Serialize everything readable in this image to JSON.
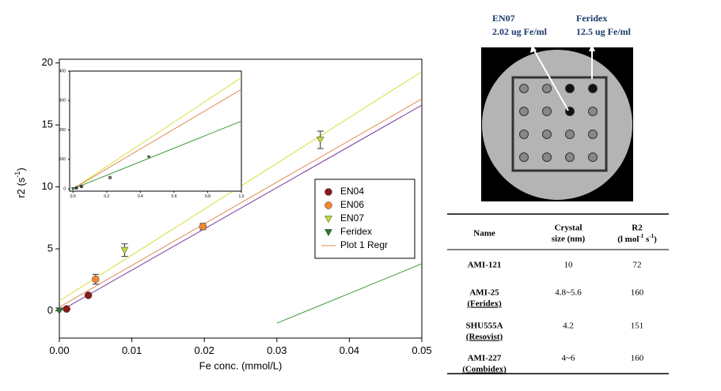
{
  "chart_data": [
    {
      "type": "scatter",
      "xlabel": "Fe conc. (mmol/L)",
      "ylabel": [
        "r2 (s",
        "-1",
        ")"
      ],
      "xlim": [
        0,
        0.05
      ],
      "ylim": [
        -2.2,
        20.3
      ],
      "xticks": [
        {
          "value": 0,
          "label": "0.00"
        },
        {
          "value": 0.01,
          "label": "0.01"
        },
        {
          "value": 0.02,
          "label": "0.02"
        },
        {
          "value": 0.03,
          "label": "0.03"
        },
        {
          "value": 0.04,
          "label": "0.04"
        },
        {
          "value": 0.05,
          "label": "0.05"
        }
      ],
      "yticks": [
        0,
        5,
        10,
        15,
        20
      ],
      "series": [
        {
          "name": "EN04",
          "color": "#8b1a1a",
          "marker": "circle",
          "x": [
            0.001,
            0.004
          ],
          "values": [
            0.15,
            1.25
          ]
        },
        {
          "name": "EN06",
          "color": "#f08a30",
          "marker": "circle",
          "x": [
            0.005,
            0.0198
          ],
          "values": [
            2.55,
            6.8
          ],
          "errors": [
            0.4,
            0.25
          ]
        },
        {
          "name": "EN07",
          "color": "#c8d83a",
          "marker": "triangle-down",
          "x": [
            0.009,
            0.036
          ],
          "values": [
            4.9,
            13.8
          ],
          "errors": [
            0.5,
            0.7
          ]
        },
        {
          "name": "Feridex",
          "color": "#2a7a2a",
          "marker": "triangle-down",
          "x": [
            0
          ],
          "values": [
            0.02
          ]
        },
        {
          "name": "Plot 1 Regr",
          "color": "#e08850",
          "marker": "line",
          "x": [
            0,
            0.05
          ],
          "values": [
            0.3,
            17.1
          ]
        }
      ],
      "fit_lines": [
        {
          "color": "#d8e040",
          "x": [
            0,
            0.05
          ],
          "values": [
            0.8,
            19.3
          ]
        },
        {
          "color": "#7a3a9a",
          "x": [
            0,
            0.05
          ],
          "values": [
            -0.05,
            16.6
          ]
        },
        {
          "color": "#3a9a3a",
          "x": [
            0.03,
            0.05
          ],
          "values": [
            -1.0,
            3.8
          ]
        }
      ]
    },
    {
      "type": "scatter",
      "xlim": [
        -0.02,
        1.0
      ],
      "ylim": [
        -8,
        400
      ],
      "xticks": [
        {
          "value": 0,
          "label": "0.0"
        },
        {
          "value": 0.2,
          "label": "0.2"
        },
        {
          "value": 0.4,
          "label": "0.4"
        },
        {
          "value": 0.6,
          "label": "0.6"
        },
        {
          "value": 0.8,
          "label": "0.8"
        },
        {
          "value": 1.0,
          "label": "1.0"
        }
      ],
      "yticks": [
        0,
        100,
        200,
        300,
        400
      ],
      "series": [
        {
          "color": "#2a7a2a",
          "marker": "triangle-down",
          "x": [
            0,
            0.45
          ],
          "values": [
            0,
            108
          ]
        },
        {
          "color": "#444444",
          "marker": "circle",
          "x": [
            0.02,
            0.05
          ],
          "values": [
            3,
            8
          ]
        },
        {
          "color": "#777777",
          "marker": "circle",
          "x": [
            0.22
          ],
          "values": [
            38
          ]
        }
      ],
      "fit_lines": [
        {
          "color": "#d8e040",
          "x": [
            0,
            1.0
          ],
          "values": [
            0,
            378
          ]
        },
        {
          "color": "#e08850",
          "x": [
            0,
            1.0
          ],
          "values": [
            0,
            338
          ]
        },
        {
          "color": "#3a9a3a",
          "x": [
            0,
            1.0
          ],
          "values": [
            0,
            230
          ]
        }
      ]
    }
  ],
  "image_labels": [
    [
      "EN07",
      "2.02 ug Fe/ml"
    ],
    [
      "Feridex",
      "12.5 ug Fe/ml"
    ]
  ],
  "table": {
    "headers": [
      [
        "Name"
      ],
      [
        "Crystal",
        "size (nm)"
      ],
      [
        "R2",
        [
          "(l mol",
          "-1",
          " s",
          "-1",
          ")"
        ]
      ]
    ],
    "rows": [
      [
        [
          "AMI-121"
        ],
        "10",
        "72"
      ],
      [
        [
          "AMI-25",
          "(Feridex)"
        ],
        "4.8~5.6",
        "160"
      ],
      [
        [
          "SHU555A",
          "(Resovist)"
        ],
        "4.2",
        "151"
      ],
      [
        [
          "AMI-227",
          "(Combidex)"
        ],
        "4~6",
        "160"
      ]
    ]
  }
}
